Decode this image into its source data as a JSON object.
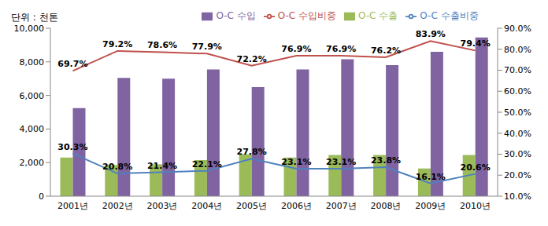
{
  "chart_data": {
    "type": "bar",
    "subtitle": "단위 : 천톤",
    "categories": [
      "2001년",
      "2002년",
      "2003년",
      "2004년",
      "2005년",
      "2006년",
      "2007년",
      "2008년",
      "2009년",
      "2010년"
    ],
    "series": [
      {
        "name": "O-C 수출",
        "type": "bar",
        "color": "#9bbb59",
        "values": [
          2300,
          1850,
          1900,
          2150,
          2500,
          2300,
          2450,
          2450,
          1650,
          2450
        ]
      },
      {
        "name": "O-C 수입",
        "type": "bar",
        "color": "#8064a2",
        "values": [
          5250,
          7050,
          7000,
          7550,
          6500,
          7550,
          8150,
          7800,
          8600,
          9450
        ]
      },
      {
        "name": "O-C 수출비중",
        "type": "line",
        "axis": "y2",
        "color": "#4f81bd",
        "values": [
          30.3,
          20.8,
          21.4,
          22.1,
          27.8,
          23.1,
          23.1,
          23.8,
          16.1,
          20.6
        ],
        "value_labels": [
          "30.3%",
          "20.8%",
          "21.4%",
          "22.1%",
          "27.8%",
          "23.1%",
          "23.1%",
          "23.8%",
          "16.1%",
          "20.6%"
        ]
      },
      {
        "name": "O-C 수입비중",
        "type": "line",
        "axis": "y2",
        "color": "#c0504d",
        "values": [
          69.7,
          79.2,
          78.6,
          77.9,
          72.2,
          76.9,
          76.9,
          76.2,
          83.9,
          79.4
        ],
        "value_labels": [
          "69.7%",
          "79.2%",
          "78.6%",
          "77.9%",
          "72.2%",
          "76.9%",
          "76.9%",
          "76.2%",
          "83.9%",
          "79.4%"
        ]
      }
    ],
    "ylim": [
      0,
      10000
    ],
    "yticks": [
      0,
      {
        "value": 2000,
        "label": "2,000"
      },
      {
        "value": 4000,
        "label": "4,000"
      },
      {
        "value": 6000,
        "label": "6,000"
      },
      {
        "value": 8000,
        "label": "8,000"
      },
      {
        "value": 10000,
        "label": "10,000"
      }
    ],
    "y2lim": [
      10,
      90
    ],
    "y2ticks": [
      {
        "value": 10,
        "label": "10.0%"
      },
      {
        "value": 20,
        "label": "20.0%"
      },
      {
        "value": 30,
        "label": "30.0%"
      },
      {
        "value": 40,
        "label": "40.0%"
      },
      {
        "value": 50,
        "label": "50.0%"
      },
      {
        "value": 60,
        "label": "60.0%"
      },
      {
        "value": 70,
        "label": "70.0%"
      },
      {
        "value": 80,
        "label": "80.0%"
      },
      {
        "value": 90,
        "label": "90.0%"
      }
    ],
    "grid": false,
    "legend": "top",
    "data_labels": true
  }
}
